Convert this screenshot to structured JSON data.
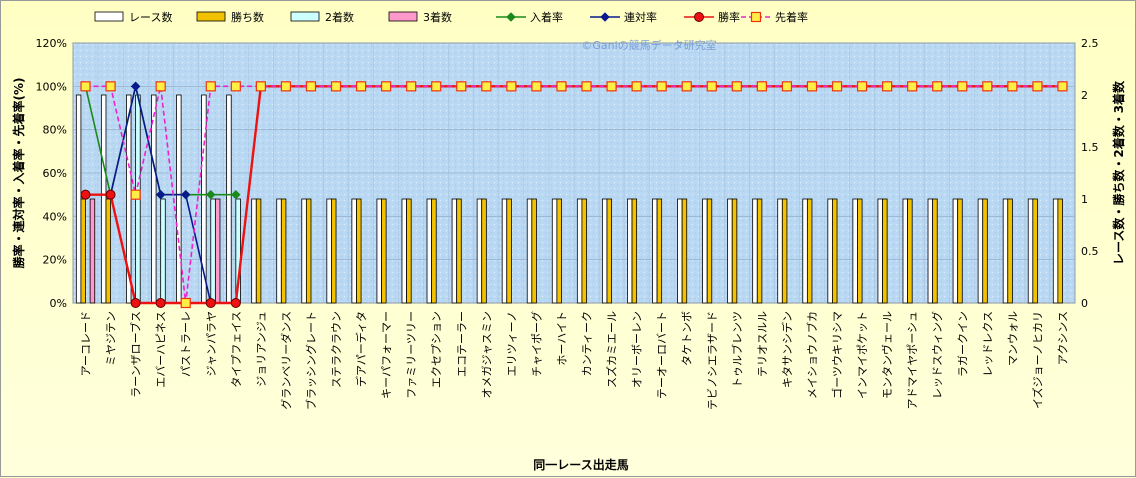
{
  "chart_data": {
    "type": "bar+line",
    "watermark": "©Ganiの競馬データ研究室",
    "xlabel": "同一レース出走馬",
    "ylabel_left": "勝率・連対率・入着率・先着率(%)",
    "ylabel_right": "レース数・勝ち数・2着数・3着数",
    "ylim_left": [
      0,
      120
    ],
    "ylim_right": [
      0,
      2.5
    ],
    "yticks_left": [
      "0%",
      "20%",
      "40%",
      "60%",
      "80%",
      "100%",
      "120%"
    ],
    "yticks_right": [
      "0",
      "0.5",
      "1",
      "1.5",
      "2",
      "2.5"
    ],
    "grid": true,
    "legend_position": "top",
    "categories": [
      "アーコレード",
      "ミヤジテン",
      "ラーンザローブス",
      "エバーハピネス",
      "パストラーレ",
      "ジャンパラヤ",
      "タイプフェイス",
      "ジョリアンジュ",
      "グランベリーダンス",
      "ブラッシングレート",
      "ステラクラウン",
      "デアパーディタ",
      "キーパフォーマー",
      "ファミリーツリー",
      "エクセプション",
      "エコテーラー",
      "オメガジャスミン",
      "エリツィーノ",
      "チャイポーグ",
      "ホーハイト",
      "カンティーク",
      "スズカミエール",
      "オリーボーレン",
      "テーオーロバート",
      "タケトンボ",
      "テビノシエラザード",
      "トゥルブレンツ",
      "テリオスルル",
      "キタサンシデン",
      "メイショウノブカ",
      "ゴーツウキリシマ",
      "インマイポケット",
      "モンタンヴェール",
      "アドマイヤポーシュ",
      "レッドスウィング",
      "ラガークイン",
      "レッドレクス",
      "マンウォル",
      "イズジョーノヒカリ",
      "アクシンス"
    ],
    "series": [
      {
        "name": "レース数",
        "axis": "right",
        "kind": "bar",
        "color": "#ffffff",
        "values": [
          2,
          2,
          2,
          2,
          2,
          2,
          2,
          1,
          1,
          1,
          1,
          1,
          1,
          1,
          1,
          1,
          1,
          1,
          1,
          1,
          1,
          1,
          1,
          1,
          1,
          1,
          1,
          1,
          1,
          1,
          1,
          1,
          1,
          1,
          1,
          1,
          1,
          1,
          1,
          1
        ]
      },
      {
        "name": "勝ち数",
        "axis": "right",
        "kind": "bar",
        "color": "#f2c200",
        "values": [
          1,
          1,
          0,
          0,
          0,
          0,
          0,
          1,
          1,
          1,
          1,
          1,
          1,
          1,
          1,
          1,
          1,
          1,
          1,
          1,
          1,
          1,
          1,
          1,
          1,
          1,
          1,
          1,
          1,
          1,
          1,
          1,
          1,
          1,
          1,
          1,
          1,
          1,
          1,
          1
        ]
      },
      {
        "name": "2着数",
        "axis": "right",
        "kind": "bar",
        "color": "#ccffff",
        "values": [
          0,
          0,
          2,
          1,
          0,
          1,
          1,
          0,
          0,
          0,
          0,
          0,
          0,
          0,
          0,
          0,
          0,
          0,
          0,
          0,
          0,
          0,
          0,
          0,
          0,
          0,
          0,
          0,
          0,
          0,
          0,
          0,
          0,
          0,
          0,
          0,
          0,
          0,
          0,
          0
        ]
      },
      {
        "name": "3着数",
        "axis": "right",
        "kind": "bar",
        "color": "#ff99cc",
        "values": [
          1,
          0,
          0,
          0,
          0,
          1,
          0,
          0,
          0,
          0,
          0,
          0,
          0,
          0,
          0,
          0,
          0,
          0,
          0,
          0,
          0,
          0,
          0,
          0,
          0,
          0,
          0,
          0,
          0,
          0,
          0,
          0,
          0,
          0,
          0,
          0,
          0,
          0,
          0,
          0
        ]
      },
      {
        "name": "入着率",
        "axis": "left",
        "kind": "line",
        "color": "#1a8a1a",
        "marker": "diamond",
        "values": [
          100,
          50,
          100,
          50,
          50,
          50,
          50,
          null,
          null,
          null,
          null,
          null,
          null,
          null,
          null,
          null,
          null,
          null,
          null,
          null,
          null,
          null,
          null,
          null,
          null,
          null,
          null,
          null,
          null,
          null,
          null,
          null,
          null,
          null,
          null,
          null,
          null,
          null,
          null,
          null
        ]
      },
      {
        "name": "連対率",
        "axis": "left",
        "kind": "line",
        "color": "#0a1a8c",
        "marker": "diamond",
        "values": [
          50,
          50,
          100,
          50,
          50,
          0,
          null,
          null,
          null,
          null,
          null,
          null,
          null,
          null,
          null,
          null,
          null,
          null,
          null,
          null,
          null,
          null,
          null,
          null,
          null,
          null,
          null,
          null,
          null,
          null,
          null,
          null,
          null,
          null,
          null,
          null,
          null,
          null,
          null,
          null
        ]
      },
      {
        "name": "勝率",
        "axis": "left",
        "kind": "line",
        "color": "#ee1111",
        "marker": "circle",
        "values": [
          50,
          50,
          0,
          0,
          0,
          0,
          0,
          100,
          100,
          100,
          100,
          100,
          100,
          100,
          100,
          100,
          100,
          100,
          100,
          100,
          100,
          100,
          100,
          100,
          100,
          100,
          100,
          100,
          100,
          100,
          100,
          100,
          100,
          100,
          100,
          100,
          100,
          100,
          100,
          100
        ]
      },
      {
        "name": "先着率",
        "axis": "left",
        "kind": "line",
        "color": "#ee22cc",
        "dashed": true,
        "marker": "square",
        "values": [
          100,
          100,
          50,
          100,
          0,
          100,
          100,
          100,
          100,
          100,
          100,
          100,
          100,
          100,
          100,
          100,
          100,
          100,
          100,
          100,
          100,
          100,
          100,
          100,
          100,
          100,
          100,
          100,
          100,
          100,
          100,
          100,
          100,
          100,
          100,
          100,
          100,
          100,
          100,
          100
        ]
      }
    ]
  }
}
